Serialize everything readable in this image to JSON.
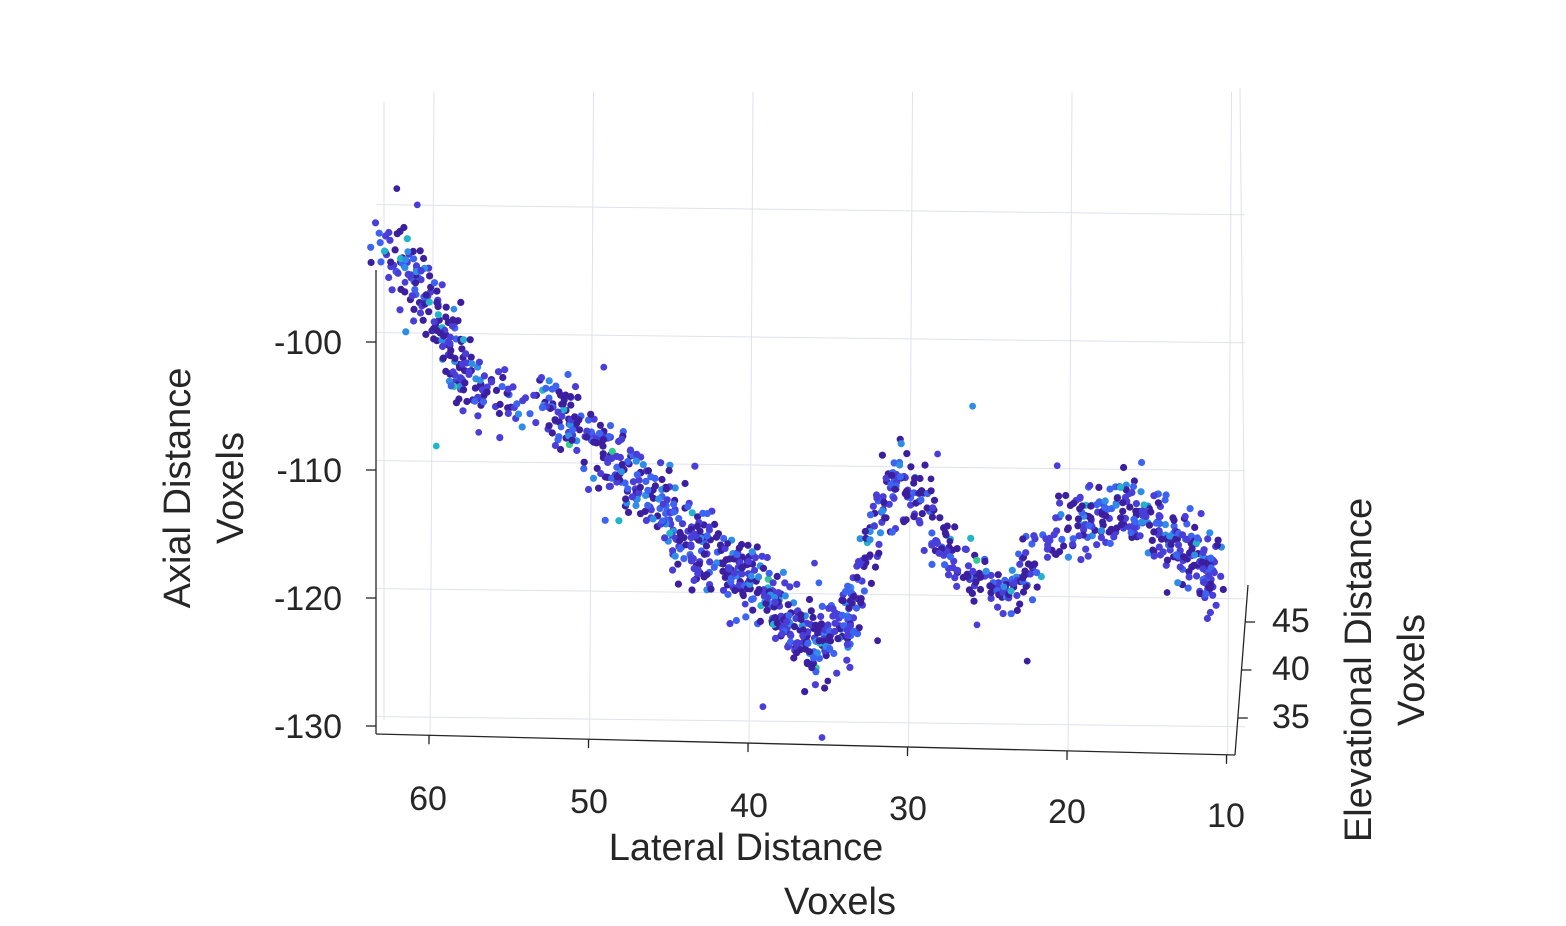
{
  "chart_data": {
    "type": "scatter",
    "title": "",
    "xlabel": [
      "Lateral Distance",
      "Voxels"
    ],
    "ylabel": [
      "Axial Distance",
      "Voxels"
    ],
    "zlabel": [
      "Elevational Distance",
      "Voxels"
    ],
    "x_ticks": [
      "60",
      "50",
      "40",
      "30",
      "20",
      "10"
    ],
    "y_ticks": [
      "-100",
      "-110",
      "-120",
      "-130"
    ],
    "z_ticks": [
      "45",
      "40",
      "35"
    ],
    "xlim": [
      64,
      10
    ],
    "ylim": [
      -131,
      -89
    ],
    "zlim": [
      30,
      48
    ],
    "grid": true,
    "colormap": [
      "#3b1f9e",
      "#4a3ed8",
      "#3d64f0",
      "#2f8de6",
      "#23b4c9",
      "#36c88e"
    ],
    "trajectory": [
      {
        "x": 63.5,
        "y": -92.5,
        "spread": 1.6,
        "n": 30
      },
      {
        "x": 61.5,
        "y": -94.0,
        "spread": 1.8,
        "n": 50
      },
      {
        "x": 60.0,
        "y": -97.0,
        "spread": 1.8,
        "n": 55
      },
      {
        "x": 58.5,
        "y": -101.0,
        "spread": 1.8,
        "n": 45
      },
      {
        "x": 57.0,
        "y": -104.0,
        "spread": 1.7,
        "n": 30
      },
      {
        "x": 55.0,
        "y": -104.0,
        "spread": 1.5,
        "n": 12
      },
      {
        "x": 53.0,
        "y": -104.5,
        "spread": 1.8,
        "n": 45
      },
      {
        "x": 51.0,
        "y": -106.5,
        "spread": 2.0,
        "n": 60
      },
      {
        "x": 48.5,
        "y": -109.0,
        "spread": 2.0,
        "n": 70
      },
      {
        "x": 46.0,
        "y": -112.0,
        "spread": 2.0,
        "n": 75
      },
      {
        "x": 43.5,
        "y": -115.0,
        "spread": 1.9,
        "n": 75
      },
      {
        "x": 41.0,
        "y": -117.0,
        "spread": 1.9,
        "n": 70
      },
      {
        "x": 39.0,
        "y": -119.5,
        "spread": 1.9,
        "n": 65
      },
      {
        "x": 37.0,
        "y": -122.0,
        "spread": 1.9,
        "n": 60
      },
      {
        "x": 35.5,
        "y": -123.0,
        "spread": 1.8,
        "n": 60
      },
      {
        "x": 34.0,
        "y": -121.0,
        "spread": 1.8,
        "n": 45
      },
      {
        "x": 32.5,
        "y": -115.0,
        "spread": 2.0,
        "n": 35
      },
      {
        "x": 31.0,
        "y": -110.0,
        "spread": 1.9,
        "n": 45
      },
      {
        "x": 29.5,
        "y": -110.5,
        "spread": 1.8,
        "n": 30
      },
      {
        "x": 28.0,
        "y": -115.0,
        "spread": 1.7,
        "n": 35
      },
      {
        "x": 26.0,
        "y": -117.5,
        "spread": 1.7,
        "n": 35
      },
      {
        "x": 24.0,
        "y": -118.5,
        "spread": 1.7,
        "n": 40
      },
      {
        "x": 22.0,
        "y": -116.0,
        "spread": 1.6,
        "n": 25
      },
      {
        "x": 20.0,
        "y": -113.0,
        "spread": 1.7,
        "n": 45
      },
      {
        "x": 18.0,
        "y": -112.0,
        "spread": 1.8,
        "n": 55
      },
      {
        "x": 16.0,
        "y": -111.5,
        "spread": 1.8,
        "n": 55
      },
      {
        "x": 14.0,
        "y": -113.0,
        "spread": 1.8,
        "n": 65
      },
      {
        "x": 12.0,
        "y": -115.5,
        "spread": 1.9,
        "n": 65
      },
      {
        "x": 10.5,
        "y": -117.5,
        "spread": 1.6,
        "n": 25
      }
    ]
  }
}
